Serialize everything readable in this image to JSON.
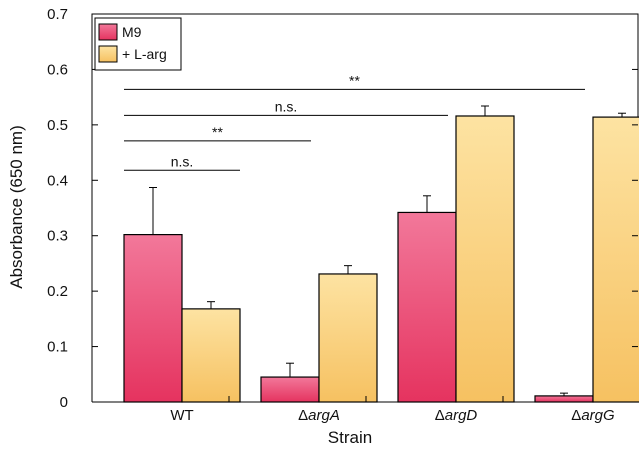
{
  "colors": {
    "m9_top": "#f2789a",
    "m9_bottom": "#e5335f",
    "larg_top": "#fde3a2",
    "larg_bottom": "#f6c161",
    "axis": "#000000"
  },
  "chart_data": {
    "type": "bar",
    "title": "",
    "xlabel": "Strain",
    "ylabel": "Absorbance (650 nm)",
    "ylim": [
      0,
      0.7
    ],
    "yticks": [
      "0",
      "0.1",
      "0.2",
      "0.3",
      "0.4",
      "0.5",
      "0.6",
      "0.7"
    ],
    "categories": [
      {
        "prefix": "",
        "name": "WT"
      },
      {
        "prefix": "Δ",
        "name": "argA"
      },
      {
        "prefix": "Δ",
        "name": "argD"
      },
      {
        "prefix": "Δ",
        "name": "argG"
      }
    ],
    "series": [
      {
        "name": "M9",
        "values": [
          0.302,
          0.045,
          0.342,
          0.011
        ],
        "errors": [
          0.085,
          0.025,
          0.03,
          0.005
        ]
      },
      {
        "name": "+ L-arg",
        "values": [
          0.168,
          0.231,
          0.516,
          0.514
        ],
        "errors": [
          0.013,
          0.015,
          0.018,
          0.007
        ]
      }
    ],
    "legend_position": "top-left",
    "grid": false,
    "error_bars": "upper",
    "significance": [
      {
        "label": "n.s.",
        "from": 0,
        "to": 0,
        "y": 0.418
      },
      {
        "label": "**",
        "from": 0,
        "to": 1,
        "y": 0.471
      },
      {
        "label": "n.s.",
        "from": 0,
        "to": 2,
        "y": 0.517
      },
      {
        "label": "**",
        "from": 0,
        "to": 3,
        "y": 0.564
      }
    ]
  }
}
